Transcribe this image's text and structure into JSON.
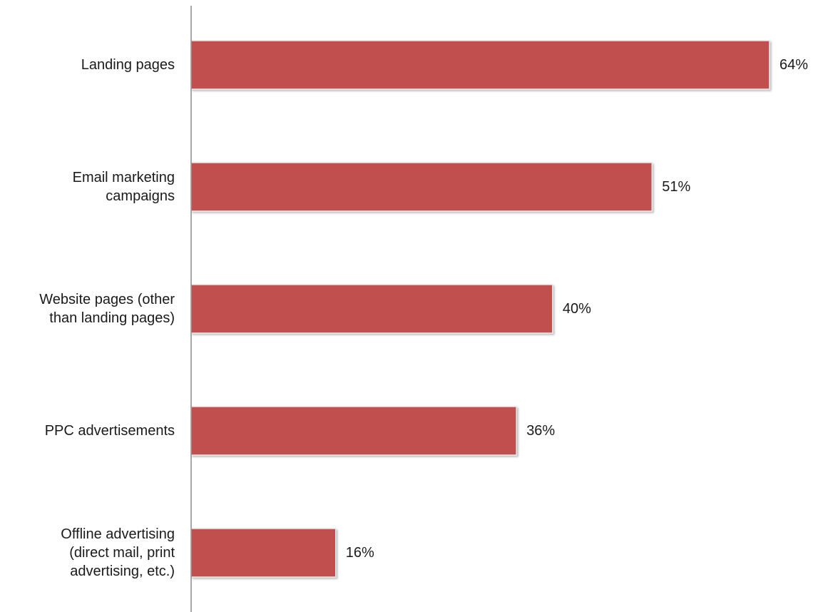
{
  "chart_data": {
    "type": "bar",
    "orientation": "horizontal",
    "title": "",
    "xlabel": "",
    "ylabel": "",
    "categories": [
      [
        "Landing pages"
      ],
      [
        "Email marketing",
        "campaigns"
      ],
      [
        "Website pages (other",
        "than landing pages)"
      ],
      [
        "PPC advertisements"
      ],
      [
        "Offline advertising",
        "(direct mail, print",
        "advertising, etc.)"
      ]
    ],
    "values": [
      64,
      51,
      40,
      36,
      16
    ],
    "value_labels": [
      "64%",
      "51%",
      "40%",
      "36%",
      "16%"
    ],
    "xlim": [
      0,
      64
    ],
    "grid": false,
    "legend": "none",
    "bar_color": "#c0504d",
    "bar_edge_color": "#e8e8e8"
  }
}
